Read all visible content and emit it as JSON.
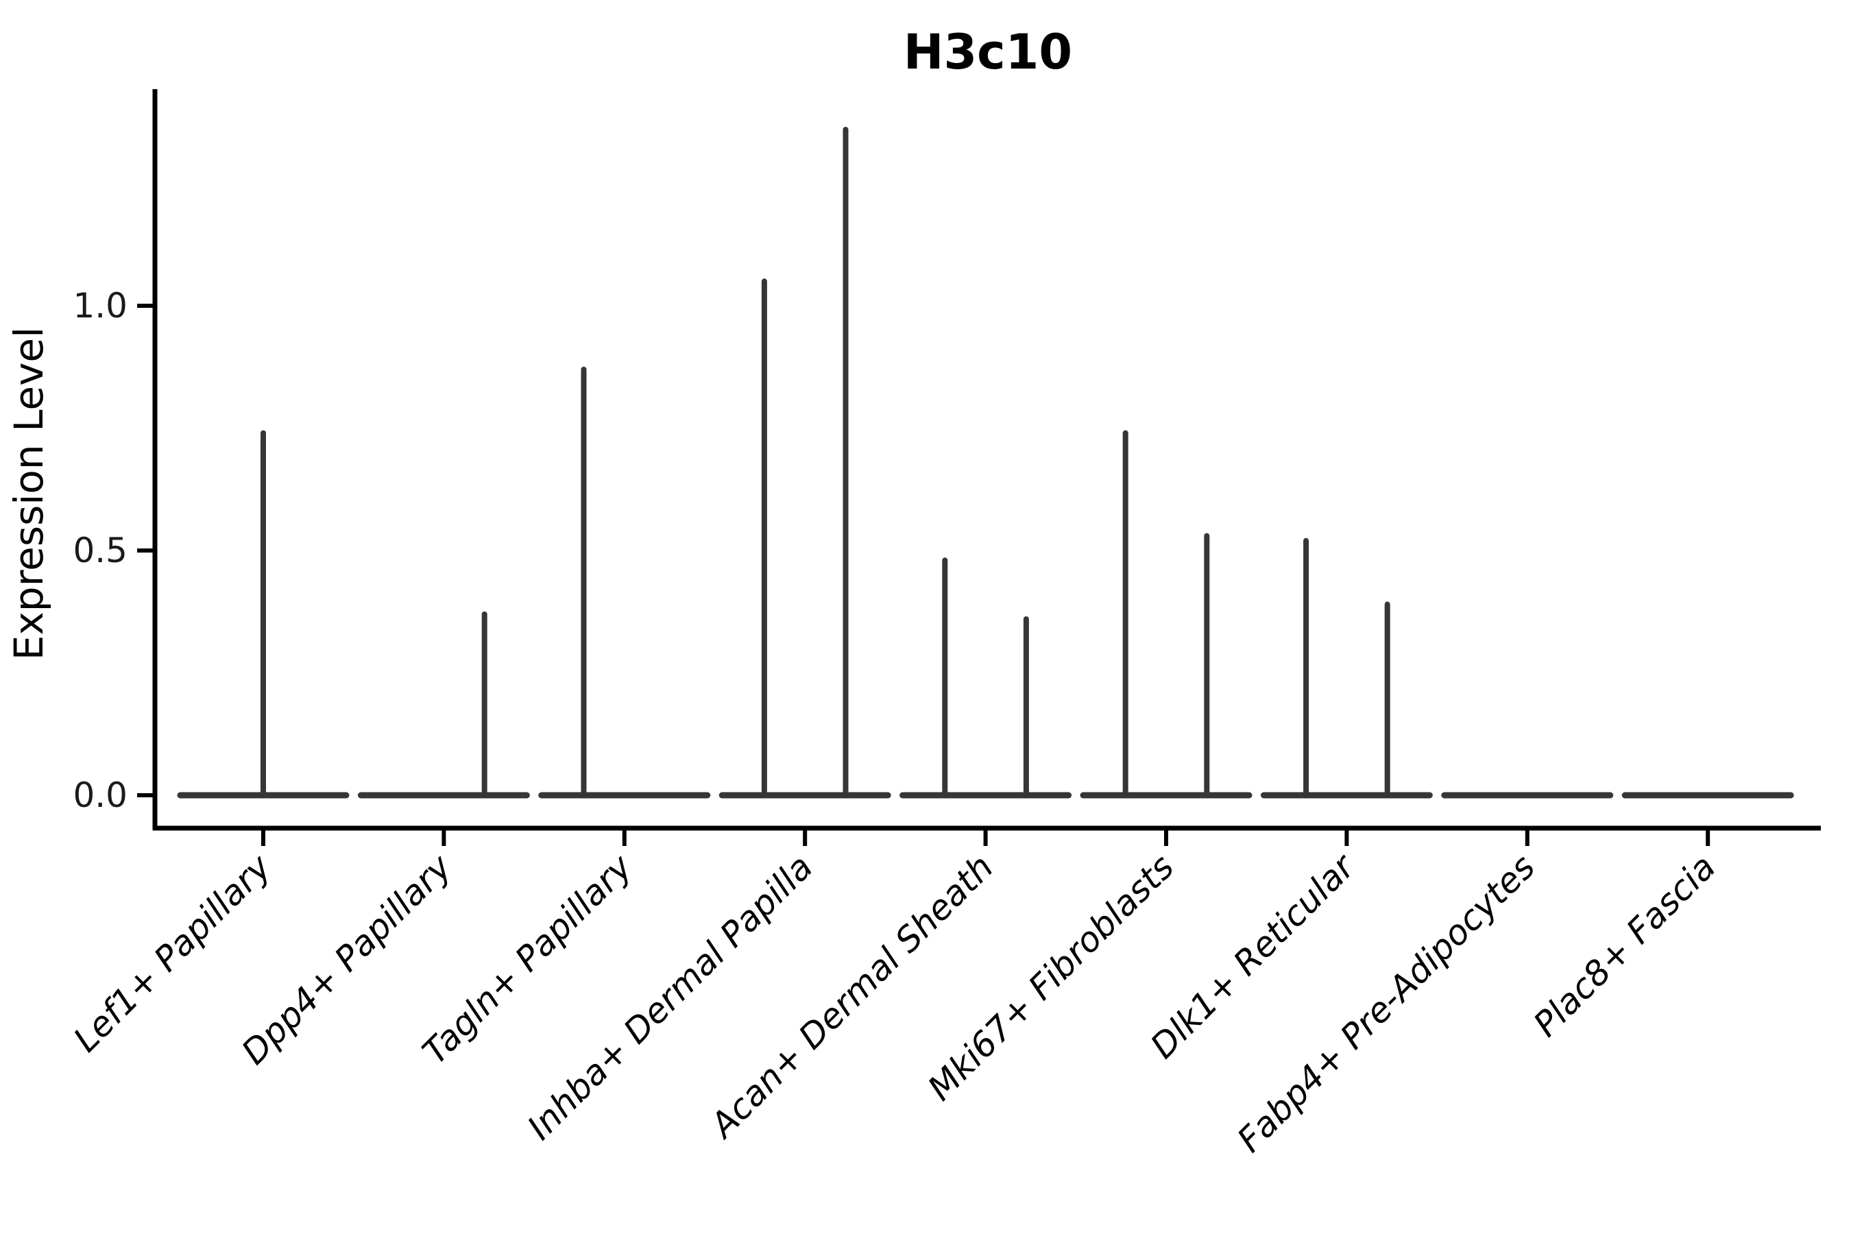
{
  "title": "H3c10",
  "y_axis": {
    "label": "Expression Level",
    "tick_labels": [
      "0.0",
      "0.5",
      "1.0"
    ],
    "tick_values": [
      0.0,
      0.5,
      1.0
    ]
  },
  "colors": {
    "violin_line": "#363636",
    "axis_line": "#000000",
    "text": "#000000",
    "background": "#ffffff"
  },
  "chart_data": {
    "type": "violin",
    "title": "H3c10",
    "xlabel": "",
    "ylabel": "Expression Level",
    "ylim": [
      -0.07,
      1.43
    ],
    "y_ticks": [
      0.0,
      0.5,
      1.0
    ],
    "grid": false,
    "legend": false,
    "description": "Collapsed violins: every category shows a flat base line at expression 0; thin spikes mark the sparse non-zero expression tails. Spike position within a category is the dodged sub-violin center (left/center/right); spike value is the maximum expression reached.",
    "categories": [
      "Lef1+ Papillary",
      "Dpp4+ Papillary",
      "Tagln+ Papillary",
      "Inhba+ Dermal Papilla",
      "Acan+ Dermal Sheath",
      "Mki67+ Fibroblasts",
      "Dlk1+ Reticular",
      "Fabp4+ Pre-Adipocytes",
      "Plac8+ Fascia"
    ],
    "violins": [
      {
        "category": "Lef1+ Papillary",
        "base_value": 0.0,
        "spikes": [
          {
            "position": "center",
            "max": 0.74
          }
        ]
      },
      {
        "category": "Dpp4+ Papillary",
        "base_value": 0.0,
        "spikes": [
          {
            "position": "right",
            "max": 0.37
          }
        ]
      },
      {
        "category": "Tagln+ Papillary",
        "base_value": 0.0,
        "spikes": [
          {
            "position": "left",
            "max": 0.87
          }
        ]
      },
      {
        "category": "Inhba+ Dermal Papilla",
        "base_value": 0.0,
        "spikes": [
          {
            "position": "left",
            "max": 1.05
          },
          {
            "position": "right",
            "max": 1.36
          }
        ]
      },
      {
        "category": "Acan+ Dermal Sheath",
        "base_value": 0.0,
        "spikes": [
          {
            "position": "left",
            "max": 0.48
          },
          {
            "position": "right",
            "max": 0.36
          }
        ]
      },
      {
        "category": "Mki67+ Fibroblasts",
        "base_value": 0.0,
        "spikes": [
          {
            "position": "left",
            "max": 0.74
          },
          {
            "position": "right",
            "max": 0.53
          }
        ]
      },
      {
        "category": "Dlk1+ Reticular",
        "base_value": 0.0,
        "spikes": [
          {
            "position": "left",
            "max": 0.52
          },
          {
            "position": "right",
            "max": 0.39
          }
        ]
      },
      {
        "category": "Fabp4+ Pre-Adipocytes",
        "base_value": 0.0,
        "spikes": []
      },
      {
        "category": "Plac8+ Fascia",
        "base_value": 0.0,
        "spikes": []
      }
    ]
  }
}
